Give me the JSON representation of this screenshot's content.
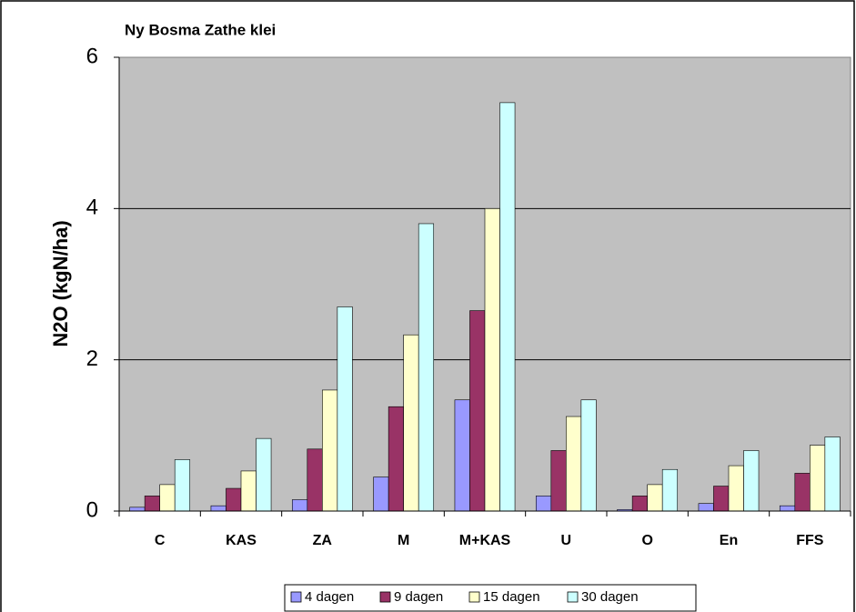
{
  "chart_data": {
    "type": "bar",
    "title": "Ny Bosma Zathe klei",
    "ylabel": "N2O (kgN/ha)",
    "categories": [
      "C",
      "KAS",
      "ZA",
      "M",
      "M+KAS",
      "U",
      "O",
      "En",
      "FFS"
    ],
    "series": [
      {
        "name": "4 dagen",
        "color": "#9999ff",
        "values": [
          0.05,
          0.07,
          0.15,
          0.45,
          1.47,
          0.2,
          0.02,
          0.1,
          0.07
        ]
      },
      {
        "name": "9 dagen",
        "color": "#993366",
        "values": [
          0.2,
          0.3,
          0.82,
          1.38,
          2.65,
          0.8,
          0.2,
          0.33,
          0.5
        ]
      },
      {
        "name": "15 dagen",
        "color": "#ffffcc",
        "values": [
          0.35,
          0.53,
          1.6,
          2.33,
          4.0,
          1.25,
          0.35,
          0.6,
          0.87
        ]
      },
      {
        "name": "30 dagen",
        "color": "#ccffff",
        "values": [
          0.68,
          0.96,
          2.7,
          3.8,
          5.4,
          1.47,
          0.55,
          0.8,
          0.98
        ]
      }
    ],
    "ylim": [
      0,
      6
    ],
    "yticks": [
      0,
      2,
      4,
      6
    ],
    "grid": true,
    "legend": "bottom"
  }
}
